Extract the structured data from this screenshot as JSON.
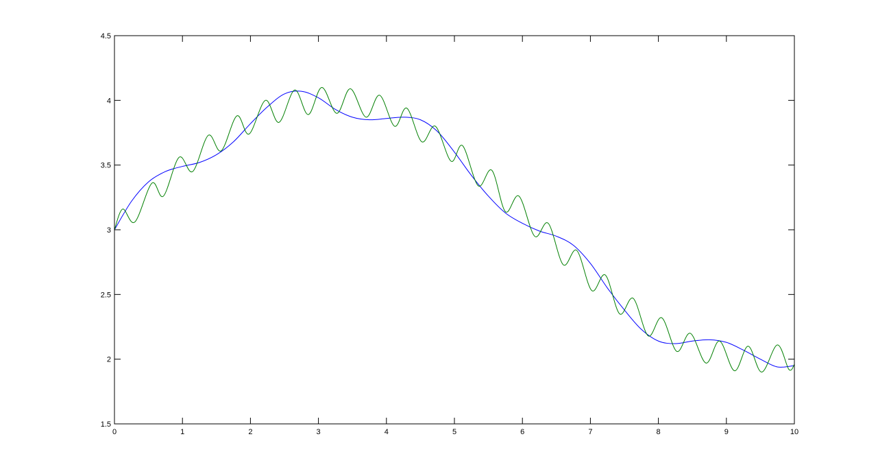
{
  "chart_data": {
    "type": "line",
    "title": "",
    "xlabel": "",
    "ylabel": "",
    "xlim": [
      0,
      10
    ],
    "ylim": [
      1.5,
      4.5
    ],
    "xticks": [
      0,
      1,
      2,
      3,
      4,
      5,
      6,
      7,
      8,
      9,
      10
    ],
    "yticks": [
      1.5,
      2,
      2.5,
      3,
      3.5,
      4,
      4.5
    ],
    "xtick_labels": [
      "0",
      "1",
      "2",
      "3",
      "4",
      "5",
      "6",
      "7",
      "8",
      "9",
      "10"
    ],
    "ytick_labels": [
      "1.5",
      "2",
      "2.5",
      "3",
      "3.5",
      "4",
      "4.5"
    ],
    "grid": false,
    "legend": "none",
    "series": [
      {
        "color": "#0000ff",
        "x": [
          0,
          0.25,
          0.5,
          0.75,
          1,
          1.25,
          1.5,
          1.75,
          2,
          2.25,
          2.5,
          2.75,
          3,
          3.25,
          3.5,
          3.75,
          4,
          4.25,
          4.5,
          4.75,
          5,
          5.25,
          5.5,
          5.75,
          6,
          6.25,
          6.5,
          6.75,
          7,
          7.25,
          7.5,
          7.75,
          8,
          8.25,
          8.5,
          8.75,
          9,
          9.25,
          9.5,
          9.75,
          10
        ],
        "y": [
          3.0,
          3.22,
          3.37,
          3.45,
          3.49,
          3.52,
          3.58,
          3.68,
          3.82,
          3.95,
          4.05,
          4.07,
          4.02,
          3.93,
          3.87,
          3.85,
          3.86,
          3.87,
          3.85,
          3.76,
          3.6,
          3.42,
          3.26,
          3.13,
          3.05,
          2.99,
          2.95,
          2.88,
          2.74,
          2.55,
          2.38,
          2.23,
          2.14,
          2.12,
          2.14,
          2.15,
          2.13,
          2.07,
          2.0,
          1.94,
          1.95
        ]
      },
      {
        "color": "#007f00",
        "x": [
          0,
          0.12,
          0.3,
          0.55,
          0.72,
          0.95,
          1.15,
          1.38,
          1.57,
          1.8,
          1.98,
          2.22,
          2.42,
          2.65,
          2.85,
          3.05,
          3.27,
          3.47,
          3.7,
          3.9,
          4.12,
          4.3,
          4.52,
          4.72,
          4.95,
          5.12,
          5.35,
          5.55,
          5.75,
          5.95,
          6.18,
          6.38,
          6.6,
          6.8,
          7.02,
          7.22,
          7.43,
          7.63,
          7.85,
          8.05,
          8.27,
          8.47,
          8.7,
          8.9,
          9.12,
          9.32,
          9.52,
          9.75,
          9.92,
          10
        ],
        "y": [
          3.0,
          3.16,
          3.06,
          3.36,
          3.26,
          3.56,
          3.45,
          3.73,
          3.61,
          3.88,
          3.74,
          4.0,
          3.83,
          4.08,
          3.89,
          4.1,
          3.9,
          4.09,
          3.87,
          4.04,
          3.8,
          3.94,
          3.68,
          3.8,
          3.53,
          3.65,
          3.34,
          3.46,
          3.14,
          3.26,
          2.95,
          3.05,
          2.73,
          2.84,
          2.53,
          2.65,
          2.35,
          2.47,
          2.18,
          2.32,
          2.06,
          2.2,
          1.97,
          2.14,
          1.91,
          2.1,
          1.9,
          2.11,
          1.92,
          1.96
        ]
      }
    ]
  }
}
